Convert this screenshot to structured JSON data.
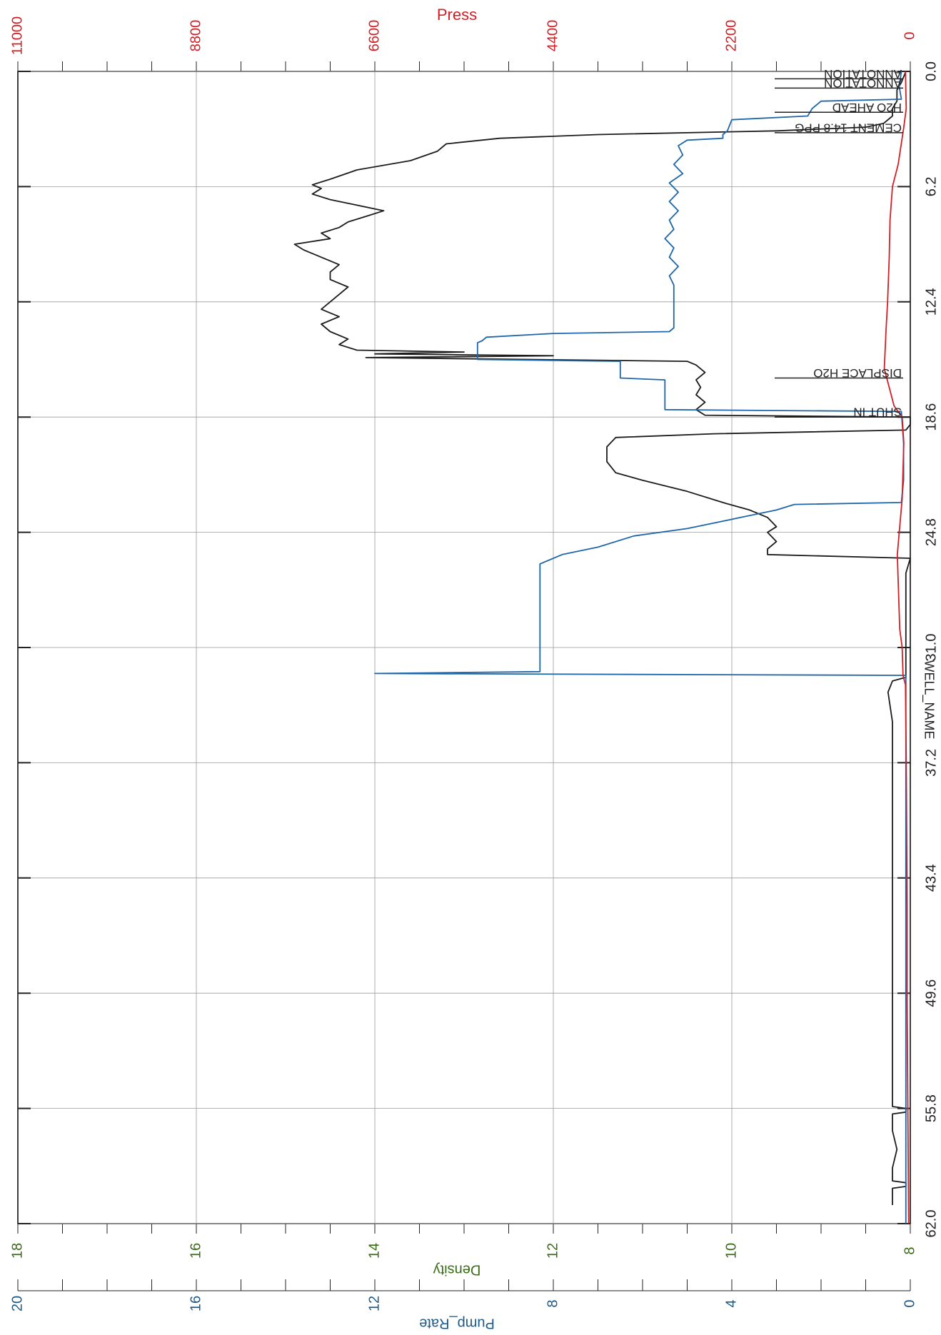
{
  "chart_data": {
    "type": "line",
    "orientation": "rotated-90",
    "title_partial": "WELL_NAME",
    "grid": true,
    "time_axis": {
      "ticks": [
        "0.0",
        "6.2",
        "12.4",
        "18.6",
        "24.8",
        "31.0",
        "37.2",
        "43.4",
        "49.6",
        "55.8",
        "62.0"
      ],
      "range": [
        0,
        62
      ]
    },
    "press_axis": {
      "label": "Press",
      "ticks": [
        "0",
        "2200",
        "4400",
        "6600",
        "8800",
        "11000"
      ],
      "range": [
        0,
        11000
      ],
      "color": "#d21f26"
    },
    "density_axis": {
      "label": "Density",
      "ticks": [
        "8",
        "10",
        "12",
        "14",
        "16",
        "18"
      ],
      "range": [
        8,
        18
      ],
      "color": "#3a6b17"
    },
    "pump_rate_axis": {
      "label": "Pump_Rate",
      "ticks": [
        "0",
        "4",
        "8",
        "12",
        "16",
        "20"
      ],
      "range": [
        0,
        20
      ],
      "color": "#1d5a8a"
    },
    "annotations": [
      {
        "t": 0.4,
        "text": "ANNOTATION"
      },
      {
        "t": 0.9,
        "text": "ANNOTATION"
      },
      {
        "t": 2.2,
        "text": "H2O AHEAD"
      },
      {
        "t": 3.3,
        "text": "CEMENT 14.8 PPG"
      },
      {
        "t": 16.5,
        "text": "DISPLACE H2O"
      },
      {
        "t": 18.6,
        "text": "SHUT IN"
      }
    ],
    "series": [
      {
        "name": "Density",
        "color": "#1b1b1b",
        "axis": "density",
        "points": [
          [
            0,
            8.05
          ],
          [
            0.6,
            8.1
          ],
          [
            1.0,
            8.15
          ],
          [
            1.6,
            8.15
          ],
          [
            2.0,
            8.2
          ],
          [
            2.4,
            8.2
          ],
          [
            2.8,
            8.3
          ],
          [
            3.0,
            8.5
          ],
          [
            3.2,
            9.5
          ],
          [
            3.4,
            11.5
          ],
          [
            3.6,
            12.6
          ],
          [
            3.9,
            13.2
          ],
          [
            4.3,
            13.3
          ],
          [
            4.8,
            13.6
          ],
          [
            5.3,
            14.2
          ],
          [
            5.8,
            14.5
          ],
          [
            6.1,
            14.7
          ],
          [
            6.3,
            14.6
          ],
          [
            6.6,
            14.7
          ],
          [
            6.9,
            14.5
          ],
          [
            7.2,
            14.2
          ],
          [
            7.5,
            13.9
          ],
          [
            7.8,
            14.1
          ],
          [
            8.1,
            14.3
          ],
          [
            8.4,
            14.4
          ],
          [
            8.7,
            14.6
          ],
          [
            9.0,
            14.5
          ],
          [
            9.3,
            14.9
          ],
          [
            9.6,
            14.8
          ],
          [
            10.0,
            14.6
          ],
          [
            10.4,
            14.4
          ],
          [
            10.8,
            14.5
          ],
          [
            11.2,
            14.5
          ],
          [
            11.6,
            14.3
          ],
          [
            12.0,
            14.4
          ],
          [
            12.4,
            14.5
          ],
          [
            12.8,
            14.6
          ],
          [
            13.2,
            14.4
          ],
          [
            13.6,
            14.6
          ],
          [
            14.0,
            14.5
          ],
          [
            14.4,
            14.3
          ],
          [
            14.7,
            14.4
          ],
          [
            15.0,
            14.2
          ],
          [
            15.1,
            13.0
          ],
          [
            15.2,
            14.0
          ],
          [
            15.3,
            12.0
          ],
          [
            15.4,
            14.1
          ],
          [
            15.6,
            10.5
          ],
          [
            15.8,
            10.4
          ],
          [
            16.2,
            10.3
          ],
          [
            16.6,
            10.4
          ],
          [
            17.0,
            10.35
          ],
          [
            17.4,
            10.4
          ],
          [
            17.8,
            10.3
          ],
          [
            18.2,
            10.4
          ],
          [
            18.5,
            10.3
          ],
          [
            18.6,
            8.0
          ],
          [
            19.0,
            8.0
          ],
          [
            19.3,
            8.05
          ],
          [
            19.5,
            10.2
          ],
          [
            19.7,
            11.3
          ],
          [
            20.2,
            11.4
          ],
          [
            21.0,
            11.4
          ],
          [
            21.6,
            11.3
          ],
          [
            22.0,
            11.0
          ],
          [
            22.6,
            10.5
          ],
          [
            23.2,
            10.1
          ],
          [
            23.6,
            9.8
          ],
          [
            24.0,
            9.6
          ],
          [
            24.5,
            9.5
          ],
          [
            24.8,
            9.6
          ],
          [
            25.3,
            9.5
          ],
          [
            25.7,
            9.6
          ],
          [
            26.0,
            9.6
          ],
          [
            26.2,
            8.0
          ],
          [
            27.0,
            8.05
          ],
          [
            30.0,
            8.05
          ],
          [
            32.0,
            8.05
          ],
          [
            32.6,
            8.05
          ],
          [
            32.8,
            8.2
          ],
          [
            33.4,
            8.25
          ],
          [
            35.0,
            8.2
          ],
          [
            40.0,
            8.2
          ],
          [
            45.0,
            8.2
          ],
          [
            50.0,
            8.2
          ],
          [
            55.0,
            8.2
          ],
          [
            55.7,
            8.2
          ],
          [
            55.8,
            8.05
          ],
          [
            56.0,
            8.05
          ],
          [
            56.1,
            8.2
          ],
          [
            57.0,
            8.2
          ],
          [
            58.0,
            8.15
          ],
          [
            59.0,
            8.2
          ],
          [
            59.7,
            8.2
          ],
          [
            59.8,
            8.05
          ],
          [
            60.0,
            8.05
          ],
          [
            60.1,
            8.2
          ],
          [
            61.0,
            8.2
          ]
        ]
      },
      {
        "name": "Pump_Rate",
        "color": "#1f66a8",
        "axis": "pump_rate",
        "points": [
          [
            0,
            0.2
          ],
          [
            0.8,
            0.25
          ],
          [
            1.5,
            0.2
          ],
          [
            1.6,
            2.0
          ],
          [
            2.0,
            2.2
          ],
          [
            2.4,
            2.3
          ],
          [
            2.6,
            4.0
          ],
          [
            3.2,
            4.1
          ],
          [
            3.4,
            4.2
          ],
          [
            3.6,
            4.2
          ],
          [
            3.7,
            5.0
          ],
          [
            4.0,
            5.2
          ],
          [
            4.5,
            5.1
          ],
          [
            5.0,
            5.3
          ],
          [
            5.5,
            5.1
          ],
          [
            6.0,
            5.4
          ],
          [
            6.5,
            5.2
          ],
          [
            7.0,
            5.4
          ],
          [
            7.5,
            5.2
          ],
          [
            8.0,
            5.4
          ],
          [
            8.5,
            5.3
          ],
          [
            9.0,
            5.5
          ],
          [
            9.5,
            5.3
          ],
          [
            10.0,
            5.4
          ],
          [
            10.5,
            5.2
          ],
          [
            11.0,
            5.4
          ],
          [
            11.5,
            5.3
          ],
          [
            12.0,
            5.3
          ],
          [
            12.4,
            5.3
          ],
          [
            12.8,
            5.3
          ],
          [
            13.5,
            5.3
          ],
          [
            13.8,
            5.3
          ],
          [
            14.0,
            5.4
          ],
          [
            14.1,
            8.0
          ],
          [
            14.3,
            9.5
          ],
          [
            14.5,
            9.6
          ],
          [
            14.6,
            9.7
          ],
          [
            14.8,
            9.7
          ],
          [
            15.0,
            9.7
          ],
          [
            15.5,
            9.7
          ],
          [
            15.6,
            6.5
          ],
          [
            16.0,
            6.5
          ],
          [
            16.5,
            6.5
          ],
          [
            16.6,
            5.5
          ],
          [
            17.0,
            5.5
          ],
          [
            17.5,
            5.5
          ],
          [
            18.2,
            5.5
          ],
          [
            18.3,
            0.2
          ],
          [
            20.0,
            0.15
          ],
          [
            22.0,
            0.15
          ],
          [
            23.2,
            0.2
          ],
          [
            23.3,
            2.6
          ],
          [
            23.6,
            3.0
          ],
          [
            24.0,
            3.8
          ],
          [
            24.3,
            4.4
          ],
          [
            24.6,
            5.0
          ],
          [
            25.0,
            6.2
          ],
          [
            25.6,
            7.0
          ],
          [
            26.0,
            7.8
          ],
          [
            26.5,
            8.3
          ],
          [
            27.0,
            8.3
          ],
          [
            32.0,
            8.3
          ],
          [
            32.3,
            8.3
          ],
          [
            32.4,
            12.0
          ],
          [
            32.5,
            0.1
          ],
          [
            40.0,
            0.1
          ],
          [
            50.0,
            0.1
          ],
          [
            62.0,
            0.1
          ]
        ]
      },
      {
        "name": "Press",
        "color": "#d21f26",
        "axis": "press",
        "points": [
          [
            0,
            60
          ],
          [
            2,
            50
          ],
          [
            3,
            80
          ],
          [
            5,
            150
          ],
          [
            6.2,
            220
          ],
          [
            8,
            250
          ],
          [
            10,
            260
          ],
          [
            12.4,
            280
          ],
          [
            14,
            300
          ],
          [
            16,
            320
          ],
          [
            18,
            200
          ],
          [
            18.6,
            100
          ],
          [
            20,
            80
          ],
          [
            23,
            100
          ],
          [
            26,
            160
          ],
          [
            30,
            130
          ],
          [
            31,
            100
          ],
          [
            32.5,
            90
          ],
          [
            33,
            60
          ],
          [
            37,
            50
          ],
          [
            45,
            40
          ],
          [
            50,
            40
          ],
          [
            56,
            30
          ],
          [
            62,
            20
          ]
        ]
      }
    ]
  }
}
